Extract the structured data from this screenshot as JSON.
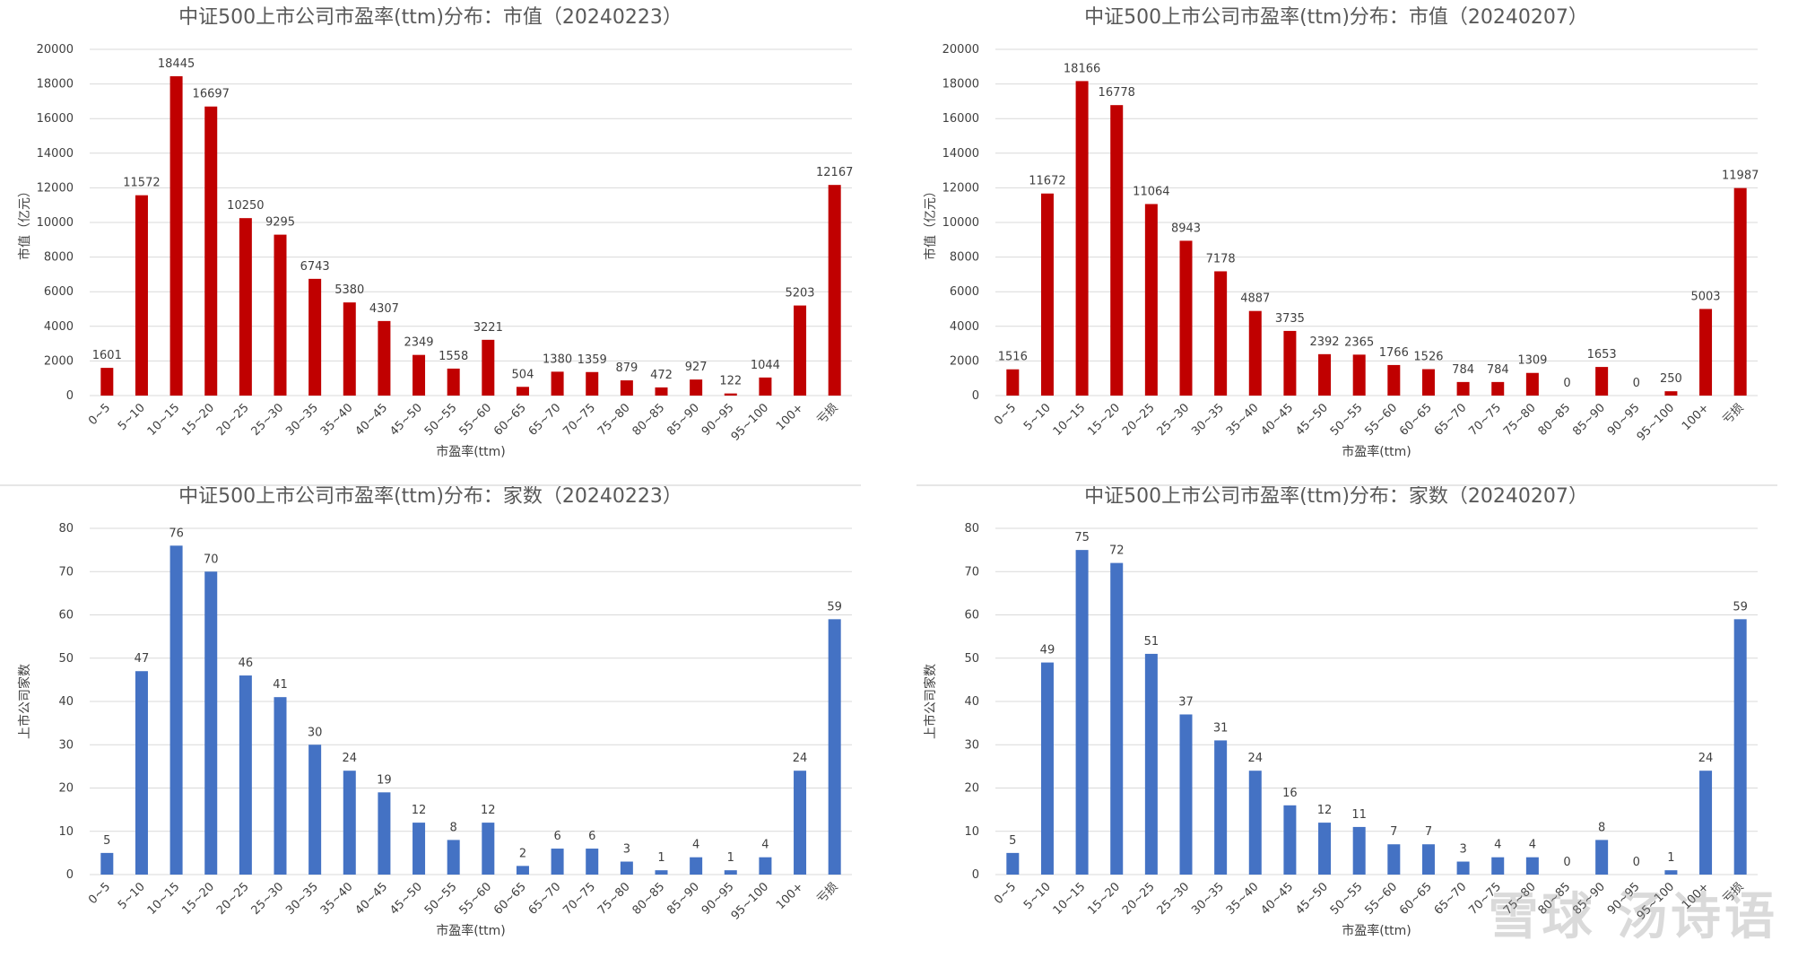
{
  "categories": [
    "0~5",
    "5~10",
    "10~15",
    "15~20",
    "20~25",
    "25~30",
    "30~35",
    "35~40",
    "40~45",
    "45~50",
    "50~55",
    "55~60",
    "60~65",
    "65~70",
    "70~75",
    "75~80",
    "80~85",
    "85~90",
    "90~95",
    "95~100",
    "100+",
    "亏损"
  ],
  "watermark": "雪球 汤诗语",
  "chart_data": [
    {
      "type": "bar",
      "title": "中证500上市公司市盈率(ttm)分布：市值（20240223）",
      "xlabel": "市盈率(ttm)",
      "ylabel": "市值（亿元）",
      "ylim": [
        0,
        20000
      ],
      "yticks": [
        0,
        2000,
        4000,
        6000,
        8000,
        10000,
        12000,
        14000,
        16000,
        18000,
        20000
      ],
      "color": "#c00000",
      "values": [
        1601,
        11572,
        18445,
        16697,
        10250,
        9295,
        6743,
        5380,
        4307,
        2349,
        1558,
        3221,
        504,
        1380,
        1359,
        879,
        472,
        927,
        122,
        1044,
        5203,
        12167
      ]
    },
    {
      "type": "bar",
      "title": "中证500上市公司市盈率(ttm)分布：市值（20240207）",
      "xlabel": "市盈率(ttm)",
      "ylabel": "市值（亿元）",
      "ylim": [
        0,
        20000
      ],
      "yticks": [
        0,
        2000,
        4000,
        6000,
        8000,
        10000,
        12000,
        14000,
        16000,
        18000,
        20000
      ],
      "color": "#c00000",
      "values": [
        1516,
        11672,
        18166,
        16778,
        11064,
        8943,
        7178,
        4887,
        3735,
        2392,
        2365,
        1766,
        1526,
        784,
        784,
        1309,
        0,
        1653,
        0,
        250,
        5003,
        11987
      ]
    },
    {
      "type": "bar",
      "title": "中证500上市公司市盈率(ttm)分布：家数（20240223）",
      "xlabel": "市盈率(ttm)",
      "ylabel": "上市公司家数",
      "ylim": [
        0,
        80
      ],
      "yticks": [
        0,
        10,
        20,
        30,
        40,
        50,
        60,
        70,
        80
      ],
      "color": "#4472c4",
      "values": [
        5,
        47,
        76,
        70,
        46,
        41,
        30,
        24,
        19,
        12,
        8,
        12,
        2,
        6,
        6,
        3,
        1,
        4,
        1,
        4,
        24,
        59
      ]
    },
    {
      "type": "bar",
      "title": "中证500上市公司市盈率(ttm)分布：家数（20240207）",
      "xlabel": "市盈率(ttm)",
      "ylabel": "上市公司家数",
      "ylim": [
        0,
        80
      ],
      "yticks": [
        0,
        10,
        20,
        30,
        40,
        50,
        60,
        70,
        80
      ],
      "color": "#4472c4",
      "values": [
        5,
        49,
        75,
        72,
        51,
        37,
        31,
        24,
        16,
        12,
        11,
        7,
        7,
        3,
        4,
        4,
        0,
        8,
        0,
        1,
        24,
        59
      ]
    }
  ]
}
